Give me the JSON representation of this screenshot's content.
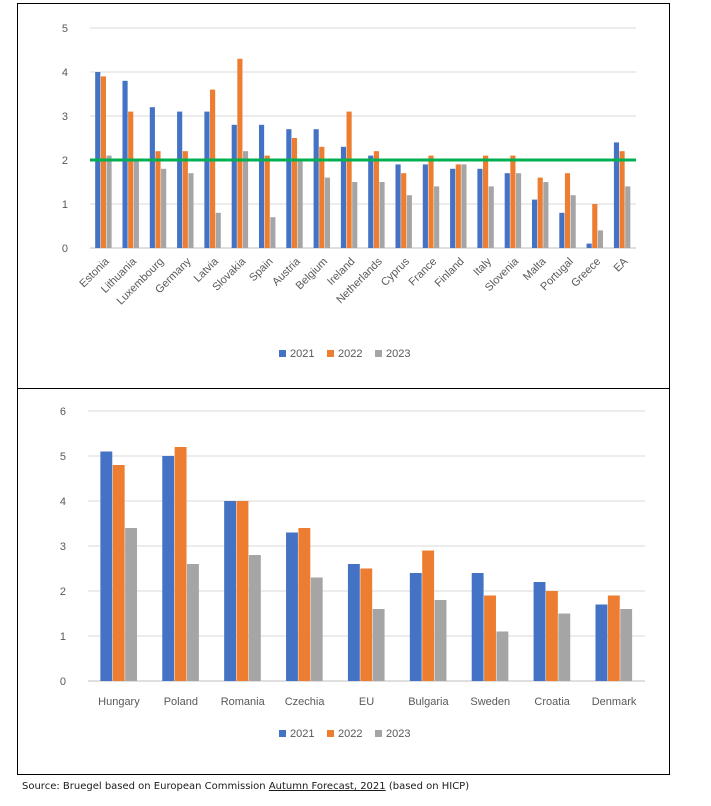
{
  "colors": {
    "s2021": "#4472C4",
    "s2022": "#ED7D31",
    "s2023": "#A5A5A5",
    "target": "#00B050",
    "grid": "#D9D9D9"
  },
  "source": {
    "prefix": "Source: Bruegel based on European Commission ",
    "link": "Autumn Forecast, 2021",
    "suffix": " (based on HICP)"
  },
  "chart_data": [
    {
      "type": "bar",
      "categories": [
        "Estonia",
        "Lithuania",
        "Luxembourg",
        "Germany",
        "Latvia",
        "Slovakia",
        "Spain",
        "Austria",
        "Belgium",
        "Ireland",
        "Netherlands",
        "Cyprus",
        "France",
        "Finland",
        "Italy",
        "Slovenia",
        "Malta",
        "Portugal",
        "Greece",
        "EA"
      ],
      "series": [
        {
          "name": "2021",
          "values": [
            4.0,
            3.8,
            3.2,
            3.1,
            3.1,
            2.8,
            2.8,
            2.7,
            2.7,
            2.3,
            2.1,
            1.9,
            1.9,
            1.8,
            1.8,
            1.7,
            1.1,
            0.8,
            0.1,
            2.4
          ]
        },
        {
          "name": "2022",
          "values": [
            3.9,
            3.1,
            2.2,
            2.2,
            3.6,
            4.3,
            2.1,
            2.5,
            2.3,
            3.1,
            2.2,
            1.7,
            2.1,
            1.9,
            2.1,
            2.1,
            1.6,
            1.7,
            1.0,
            2.2
          ]
        },
        {
          "name": "2023",
          "values": [
            2.1,
            2.0,
            1.8,
            1.7,
            0.8,
            2.2,
            0.7,
            2.0,
            1.6,
            1.5,
            1.5,
            1.2,
            1.4,
            1.9,
            1.4,
            1.7,
            1.5,
            1.2,
            0.4,
            1.4
          ]
        }
      ],
      "reference_line": 2,
      "ylim": [
        0,
        5
      ],
      "yticks": [
        0,
        1,
        2,
        3,
        4,
        5
      ],
      "xlabel": "",
      "ylabel": "",
      "legend": [
        "2021",
        "2022",
        "2023"
      ],
      "legend_position": "bottom",
      "grid": true
    },
    {
      "type": "bar",
      "categories": [
        "Hungary",
        "Poland",
        "Romania",
        "Czechia",
        "EU",
        "Bulgaria",
        "Sweden",
        "Croatia",
        "Denmark"
      ],
      "series": [
        {
          "name": "2021",
          "values": [
            5.1,
            5.0,
            4.0,
            3.3,
            2.6,
            2.4,
            2.4,
            2.2,
            1.7
          ]
        },
        {
          "name": "2022",
          "values": [
            4.8,
            5.2,
            4.0,
            3.4,
            2.5,
            2.9,
            1.9,
            2.0,
            1.9
          ]
        },
        {
          "name": "2023",
          "values": [
            3.4,
            2.6,
            2.8,
            2.3,
            1.6,
            1.8,
            1.1,
            1.5,
            1.6
          ]
        }
      ],
      "ylim": [
        0,
        6
      ],
      "yticks": [
        0,
        1,
        2,
        3,
        4,
        5,
        6
      ],
      "xlabel": "",
      "ylabel": "",
      "legend": [
        "2021",
        "2022",
        "2023"
      ],
      "legend_position": "bottom",
      "grid": true
    }
  ]
}
